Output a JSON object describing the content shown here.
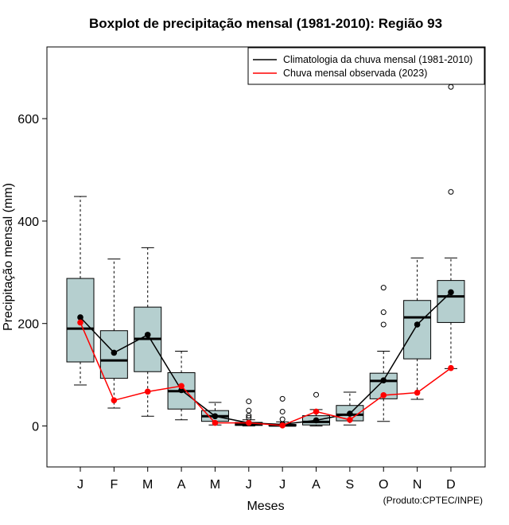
{
  "chart_data": {
    "type": "boxplot",
    "title": "Boxplot de precipitação mensal (1981-2010): Região 93",
    "xlabel": "Meses",
    "ylabel": "Precipitação mensal (mm)",
    "credit": "(Produto:CPTEC/INPE)",
    "ylim": [
      -80,
      740
    ],
    "y_ticks": [
      0,
      200,
      400,
      600
    ],
    "categories": [
      "J",
      "F",
      "M",
      "A",
      "M",
      "J",
      "J",
      "A",
      "S",
      "O",
      "N",
      "D"
    ],
    "legend_position": "top-right",
    "legend": [
      {
        "label": "Climatologia da chuva mensal (1981-2010)",
        "color": "#000000"
      },
      {
        "label": "Chuva mensal observada (2023)",
        "color": "#ff0000"
      }
    ],
    "box_fill": "#b5cfcf",
    "boxes": [
      {
        "month": "J",
        "whisker_low": 80,
        "q1": 125,
        "median": 190,
        "q3": 288,
        "whisker_high": 448,
        "outliers": []
      },
      {
        "month": "F",
        "whisker_low": 35,
        "q1": 93,
        "median": 128,
        "q3": 186,
        "whisker_high": 326,
        "outliers": []
      },
      {
        "month": "M",
        "whisker_low": 19,
        "q1": 106,
        "median": 170,
        "q3": 232,
        "whisker_high": 348,
        "outliers": []
      },
      {
        "month": "A",
        "whisker_low": 12,
        "q1": 33,
        "median": 68,
        "q3": 104,
        "whisker_high": 146,
        "outliers": []
      },
      {
        "month": "M",
        "whisker_low": 2,
        "q1": 9,
        "median": 19,
        "q3": 30,
        "whisker_high": 46,
        "outliers": []
      },
      {
        "month": "J",
        "whisker_low": 0,
        "q1": 1,
        "median": 3,
        "q3": 7,
        "whisker_high": 12,
        "outliers": [
          16,
          20,
          30,
          48
        ]
      },
      {
        "month": "J",
        "whisker_low": 0,
        "q1": 0,
        "median": 1,
        "q3": 3,
        "whisker_high": 8,
        "outliers": [
          13,
          28,
          53
        ]
      },
      {
        "month": "A",
        "whisker_low": 0,
        "q1": 2,
        "median": 8,
        "q3": 20,
        "whisker_high": 32,
        "outliers": [
          61
        ]
      },
      {
        "month": "S",
        "whisker_low": 2,
        "q1": 10,
        "median": 22,
        "q3": 40,
        "whisker_high": 66,
        "outliers": []
      },
      {
        "month": "O",
        "whisker_low": 9,
        "q1": 53,
        "median": 88,
        "q3": 103,
        "whisker_high": 146,
        "outliers": [
          198,
          222,
          270
        ]
      },
      {
        "month": "N",
        "whisker_low": 52,
        "q1": 131,
        "median": 212,
        "q3": 245,
        "whisker_high": 328,
        "outliers": []
      },
      {
        "month": "D",
        "whisker_low": 112,
        "q1": 202,
        "median": 253,
        "q3": 284,
        "whisker_high": 328,
        "outliers": [
          457,
          662
        ]
      }
    ],
    "series": [
      {
        "name": "Climatologia da chuva mensal (1981-2010)",
        "color": "#000000",
        "values": [
          212,
          143,
          178,
          70,
          19,
          6,
          3,
          11,
          24,
          89,
          198,
          261
        ]
      },
      {
        "name": "Chuva mensal observada (2023)",
        "color": "#ff0000",
        "values": [
          202,
          50,
          67,
          78,
          6,
          6,
          1,
          28,
          12,
          60,
          65,
          113
        ]
      }
    ]
  }
}
